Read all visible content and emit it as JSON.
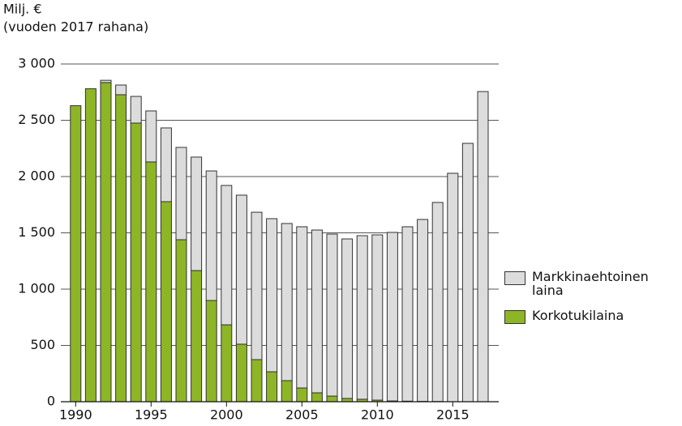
{
  "chart_data": {
    "type": "stacked_bar",
    "ylabel": [
      "Milj. €",
      "(vuoden 2017 rahana)"
    ],
    "categories": [
      "1990",
      null,
      null,
      null,
      null,
      "1995",
      null,
      null,
      null,
      null,
      "2000",
      null,
      null,
      null,
      null,
      "2005",
      null,
      null,
      null,
      null,
      "2010",
      null,
      null,
      null,
      null,
      "2015",
      null,
      null
    ],
    "series": [
      {
        "name": "Korkotukilaina",
        "color": "#8db526",
        "values": [
          2630,
          2780,
          2835,
          2727,
          2475,
          2130,
          1777,
          1439,
          1165,
          899,
          683,
          511,
          374,
          266,
          187,
          122,
          79,
          50,
          29,
          22,
          14,
          7,
          5,
          3,
          2,
          0,
          0,
          0
        ]
      },
      {
        "name": "Markkinaehtoinen laina",
        "color": "#dcdcdc",
        "values": [
          0,
          0,
          20,
          86,
          237,
          453,
          655,
          820,
          1008,
          1151,
          1238,
          1324,
          1309,
          1360,
          1396,
          1432,
          1446,
          1439,
          1417,
          1453,
          1468,
          1497,
          1549,
          1616,
          1768,
          2029,
          2295,
          2755
        ]
      }
    ],
    "ylim": [
      0,
      3000
    ],
    "yticks": [
      0,
      500,
      {
        "value": 1000,
        "label": "1 000"
      },
      {
        "value": 1500,
        "label": "1 500"
      },
      {
        "value": 2000,
        "label": "2 000"
      },
      {
        "value": 2500,
        "label": "2 500"
      },
      {
        "value": 3000,
        "label": "3 000"
      }
    ],
    "grid": true
  }
}
